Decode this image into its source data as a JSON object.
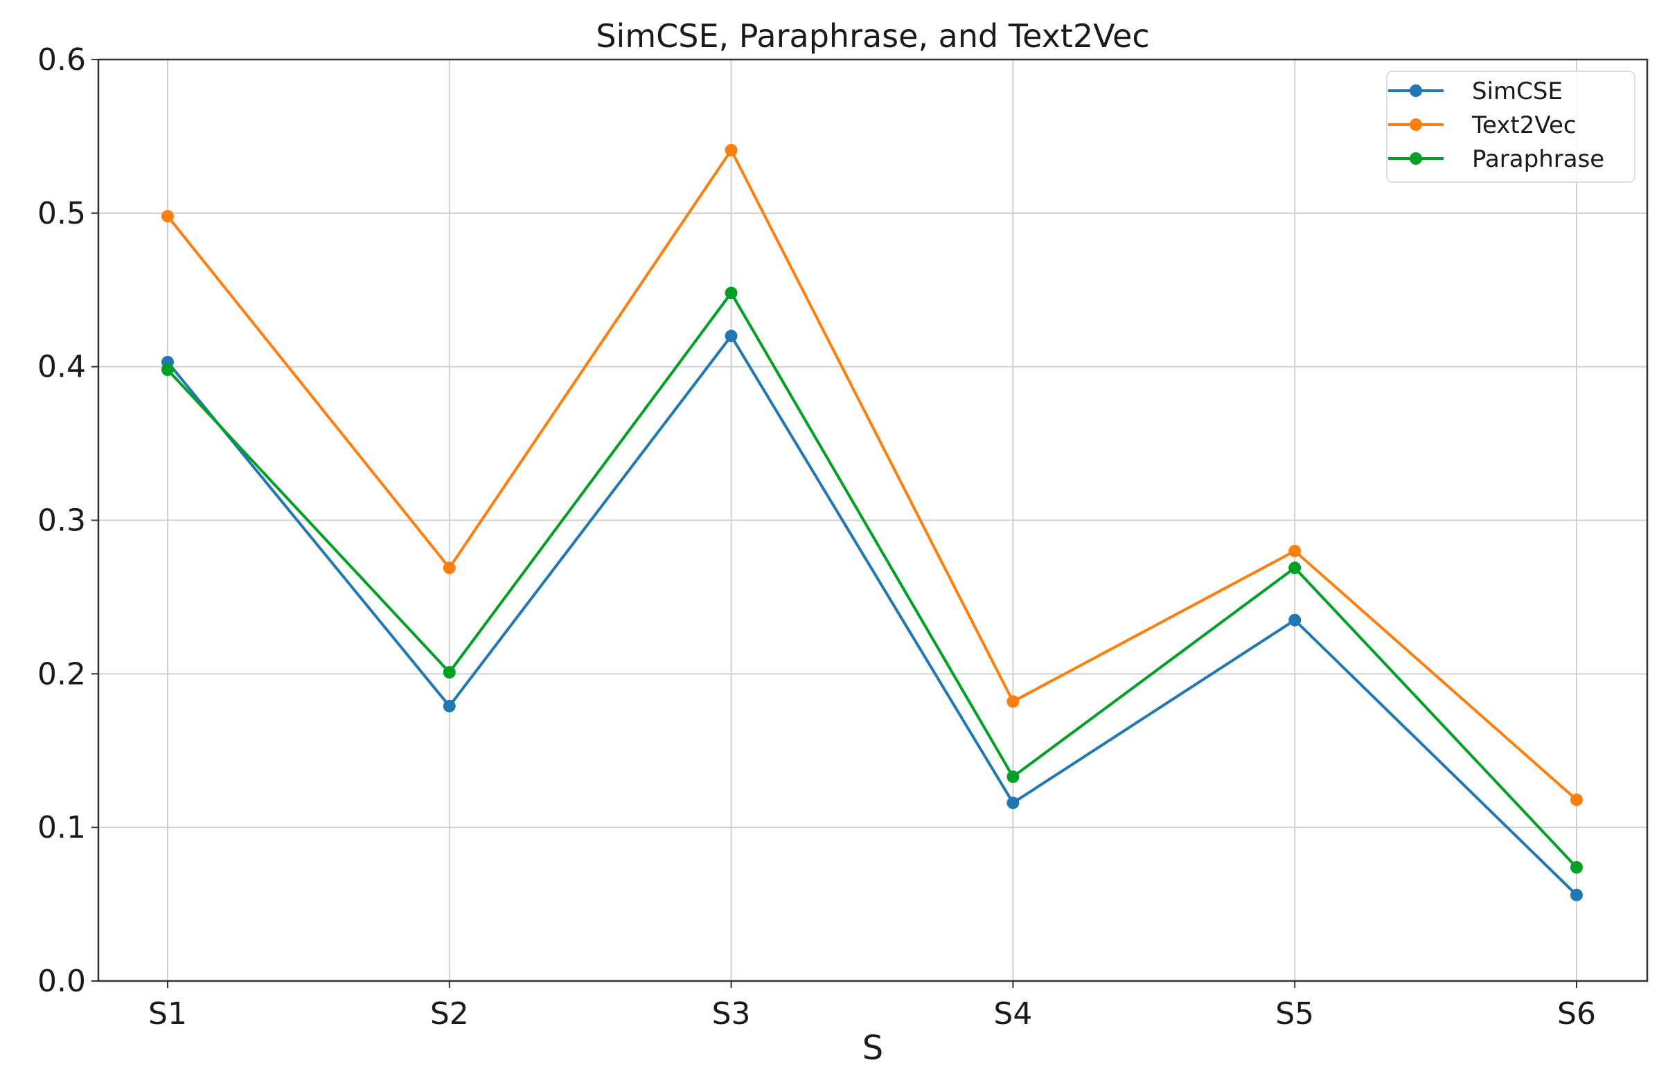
{
  "chart_data": {
    "type": "line",
    "title": "SimCSE, Paraphrase, and Text2Vec",
    "xlabel": "S",
    "ylabel": "",
    "categories": [
      "S1",
      "S2",
      "S3",
      "S4",
      "S5",
      "S6"
    ],
    "ylim": [
      0,
      0.6
    ],
    "yticks": [
      "0.0",
      "0.1",
      "0.2",
      "0.3",
      "0.4",
      "0.5",
      "0.6"
    ],
    "grid": true,
    "legend_position": "top-right",
    "series": [
      {
        "name": "SimCSE",
        "color": "#1f77b4",
        "values": [
          0.403,
          0.179,
          0.42,
          0.116,
          0.235,
          0.056
        ]
      },
      {
        "name": "Text2Vec",
        "color": "#ff7f0e",
        "values": [
          0.498,
          0.269,
          0.541,
          0.182,
          0.28,
          0.118
        ]
      },
      {
        "name": "Paraphrase",
        "color": "#00a024",
        "values": [
          0.398,
          0.201,
          0.448,
          0.133,
          0.269,
          0.074
        ]
      }
    ]
  }
}
